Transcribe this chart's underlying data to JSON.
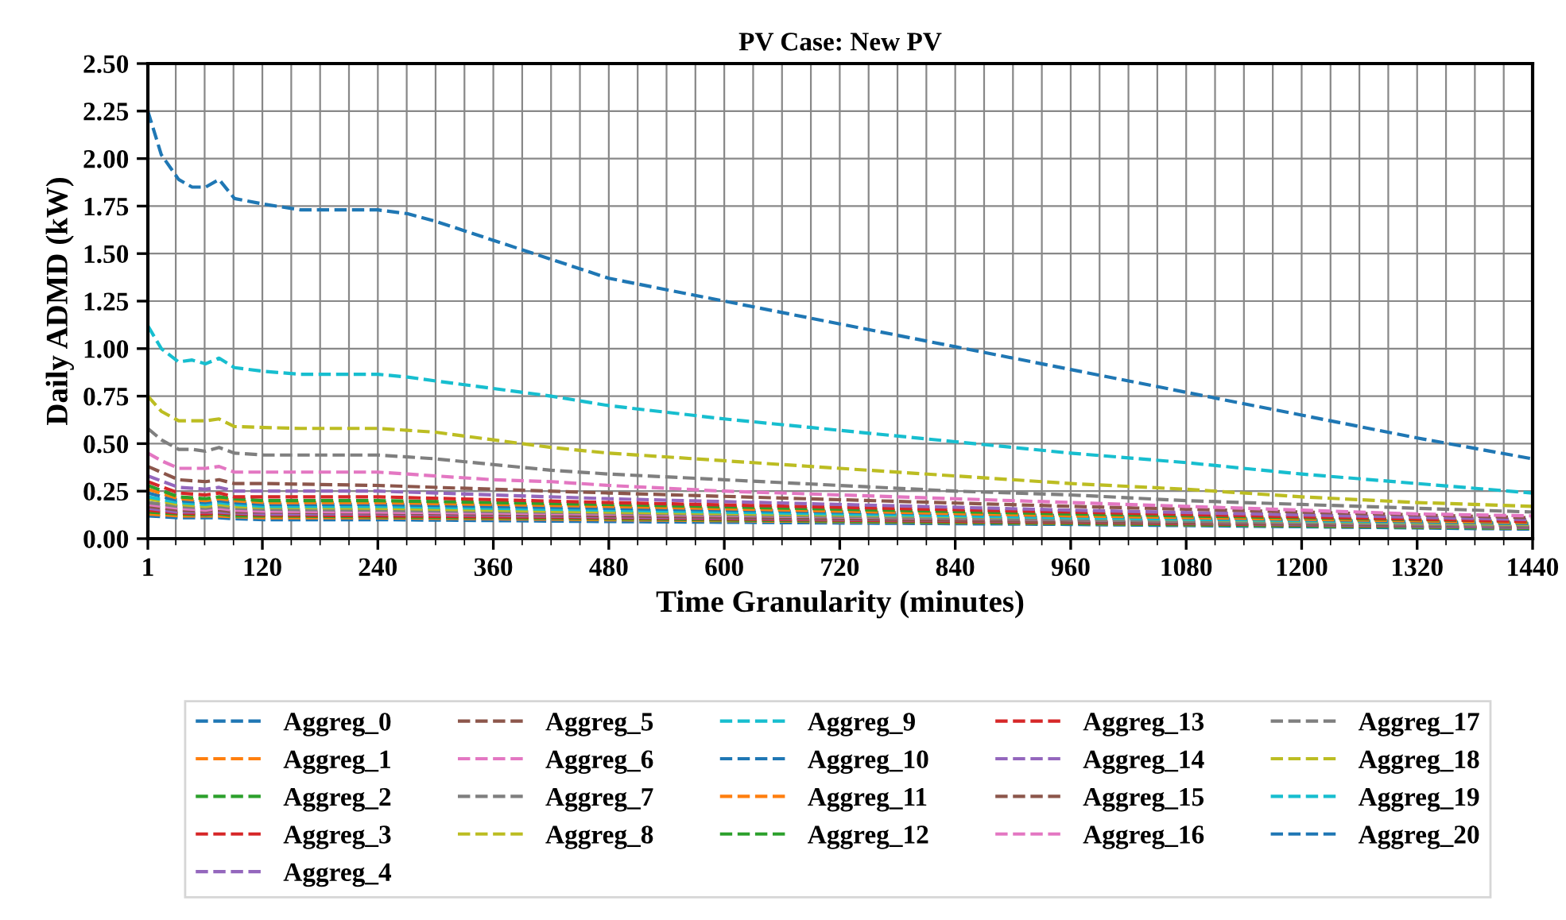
{
  "chart_data": {
    "type": "line",
    "title": "PV Case: New PV",
    "xlabel": "Time Granularity (minutes)",
    "ylabel": "Daily ADMD (kW)",
    "x": [
      1,
      15,
      33,
      47,
      61,
      75,
      91,
      122,
      160,
      240,
      271,
      300,
      360,
      420,
      480,
      600,
      720,
      840,
      960,
      1080,
      1200,
      1320,
      1440
    ],
    "xlim": [
      1,
      1440
    ],
    "xticks": [
      1,
      {
        "value": 30,
        "label": null
      },
      {
        "value": 60,
        "label": null
      },
      {
        "value": 90,
        "label": null
      },
      120,
      {
        "value": 150,
        "label": null
      },
      {
        "value": 180,
        "label": null
      },
      {
        "value": 210,
        "label": null
      },
      240,
      {
        "value": 270,
        "label": null
      },
      {
        "value": 300,
        "label": null
      },
      {
        "value": 330,
        "label": null
      },
      360,
      {
        "value": 390,
        "label": null
      },
      {
        "value": 420,
        "label": null
      },
      {
        "value": 450,
        "label": null
      },
      480,
      {
        "value": 510,
        "label": null
      },
      {
        "value": 540,
        "label": null
      },
      {
        "value": 570,
        "label": null
      },
      600,
      {
        "value": 630,
        "label": null
      },
      {
        "value": 660,
        "label": null
      },
      {
        "value": 690,
        "label": null
      },
      720,
      {
        "value": 750,
        "label": null
      },
      {
        "value": 780,
        "label": null
      },
      {
        "value": 810,
        "label": null
      },
      840,
      {
        "value": 870,
        "label": null
      },
      {
        "value": 900,
        "label": null
      },
      {
        "value": 930,
        "label": null
      },
      960,
      {
        "value": 990,
        "label": null
      },
      {
        "value": 1020,
        "label": null
      },
      {
        "value": 1050,
        "label": null
      },
      1080,
      {
        "value": 1110,
        "label": null
      },
      {
        "value": 1140,
        "label": null
      },
      {
        "value": 1170,
        "label": null
      },
      1200,
      {
        "value": 1230,
        "label": null
      },
      {
        "value": 1260,
        "label": null
      },
      {
        "value": 1290,
        "label": null
      },
      1320,
      {
        "value": 1350,
        "label": null
      },
      {
        "value": 1380,
        "label": null
      },
      {
        "value": 1410,
        "label": null
      },
      1440
    ],
    "ylim": [
      0,
      2.5
    ],
    "yticks": [
      {
        "value": 0,
        "label": "0.00"
      },
      {
        "value": 0.25,
        "label": "0.25"
      },
      {
        "value": 0.5,
        "label": "0.50"
      },
      {
        "value": 0.75,
        "label": "0.75"
      },
      {
        "value": 1,
        "label": "1.00"
      },
      {
        "value": 1.25,
        "label": "1.25"
      },
      {
        "value": 1.5,
        "label": "1.50"
      },
      {
        "value": 1.75,
        "label": "1.75"
      },
      {
        "value": 2,
        "label": "2.00"
      },
      {
        "value": 2.25,
        "label": "2.25"
      },
      {
        "value": 2.5,
        "label": "2.50"
      }
    ],
    "grid": true,
    "legend": "bottom",
    "line_style": "dashed",
    "series": [
      {
        "name": "Aggreg_0",
        "color": "#1f77b4",
        "x": [
          1,
          33,
          61,
          75,
          91,
          122,
          240,
          480,
          960,
          1440
        ],
        "values": [
          0.12,
          0.11,
          0.11,
          0.11,
          0.105,
          0.1,
          0.1,
          0.09,
          0.075,
          0.05
        ]
      },
      {
        "name": "Aggreg_1",
        "color": "#ff7f0e",
        "x": [
          1,
          33,
          61,
          75,
          91,
          122,
          240,
          480,
          960,
          1440
        ],
        "values": [
          0.13,
          0.12,
          0.12,
          0.12,
          0.115,
          0.11,
          0.11,
          0.1,
          0.08,
          0.055
        ]
      },
      {
        "name": "Aggreg_2",
        "color": "#2ca02c",
        "x": [
          1,
          33,
          61,
          75,
          91,
          122,
          240,
          480,
          960,
          1440
        ],
        "values": [
          0.14,
          0.13,
          0.125,
          0.13,
          0.12,
          0.12,
          0.115,
          0.105,
          0.08,
          0.055
        ]
      },
      {
        "name": "Aggreg_3",
        "color": "#d62728",
        "x": [
          1,
          33,
          61,
          75,
          91,
          122,
          240,
          480,
          960,
          1440
        ],
        "values": [
          0.15,
          0.135,
          0.13,
          0.135,
          0.13,
          0.125,
          0.12,
          0.11,
          0.085,
          0.06
        ]
      },
      {
        "name": "Aggreg_4",
        "color": "#9467bd",
        "x": [
          1,
          33,
          61,
          75,
          91,
          122,
          240,
          480,
          960,
          1440
        ],
        "values": [
          0.16,
          0.14,
          0.14,
          0.14,
          0.135,
          0.13,
          0.13,
          0.115,
          0.09,
          0.06
        ]
      },
      {
        "name": "Aggreg_5",
        "color": "#8c564b",
        "x": [
          1,
          33,
          61,
          75,
          91,
          122,
          240,
          480,
          960,
          1440
        ],
        "values": [
          0.17,
          0.15,
          0.145,
          0.15,
          0.14,
          0.14,
          0.135,
          0.12,
          0.09,
          0.065
        ]
      },
      {
        "name": "Aggreg_6",
        "color": "#e377c2",
        "x": [
          1,
          33,
          61,
          75,
          91,
          122,
          240,
          480,
          960,
          1440
        ],
        "values": [
          0.18,
          0.16,
          0.15,
          0.16,
          0.15,
          0.145,
          0.14,
          0.13,
          0.1,
          0.07
        ]
      },
      {
        "name": "Aggreg_7",
        "color": "#7f7f7f",
        "x": [
          1,
          33,
          61,
          75,
          91,
          122,
          240,
          480,
          960,
          1440
        ],
        "values": [
          0.19,
          0.17,
          0.16,
          0.17,
          0.16,
          0.155,
          0.15,
          0.135,
          0.1,
          0.07
        ]
      },
      {
        "name": "Aggreg_8",
        "color": "#bcbd22",
        "x": [
          1,
          33,
          61,
          75,
          91,
          122,
          240,
          480,
          960,
          1440
        ],
        "values": [
          0.21,
          0.18,
          0.17,
          0.18,
          0.17,
          0.165,
          0.16,
          0.14,
          0.11,
          0.075
        ]
      },
      {
        "name": "Aggreg_9",
        "color": "#17becf",
        "x": [
          1,
          33,
          61,
          75,
          91,
          122,
          240,
          480,
          960,
          1440
        ],
        "values": [
          0.22,
          0.19,
          0.18,
          0.19,
          0.18,
          0.17,
          0.17,
          0.15,
          0.11,
          0.08
        ]
      },
      {
        "name": "Aggreg_10",
        "color": "#1f77b4",
        "x": [
          1,
          33,
          61,
          75,
          91,
          122,
          240,
          480,
          960,
          1440
        ],
        "values": [
          0.24,
          0.2,
          0.19,
          0.2,
          0.19,
          0.18,
          0.18,
          0.16,
          0.12,
          0.08
        ]
      },
      {
        "name": "Aggreg_11",
        "color": "#ff7f0e",
        "x": [
          1,
          33,
          61,
          75,
          91,
          122,
          240,
          480,
          960,
          1440
        ],
        "values": [
          0.26,
          0.21,
          0.2,
          0.21,
          0.2,
          0.19,
          0.19,
          0.17,
          0.12,
          0.085
        ]
      },
      {
        "name": "Aggreg_12",
        "color": "#2ca02c",
        "x": [
          1,
          33,
          61,
          75,
          91,
          122,
          240,
          480,
          960,
          1440
        ],
        "values": [
          0.28,
          0.22,
          0.21,
          0.22,
          0.21,
          0.2,
          0.2,
          0.18,
          0.13,
          0.09
        ]
      },
      {
        "name": "Aggreg_13",
        "color": "#d62728",
        "x": [
          1,
          33,
          61,
          75,
          91,
          122,
          240,
          480,
          960,
          1440
        ],
        "values": [
          0.3,
          0.24,
          0.23,
          0.24,
          0.22,
          0.22,
          0.22,
          0.19,
          0.14,
          0.09
        ]
      },
      {
        "name": "Aggreg_14",
        "color": "#9467bd",
        "x": [
          1,
          33,
          61,
          75,
          91,
          122,
          240,
          480,
          960,
          1440
        ],
        "values": [
          0.33,
          0.27,
          0.26,
          0.27,
          0.25,
          0.25,
          0.25,
          0.21,
          0.15,
          0.1
        ]
      },
      {
        "name": "Aggreg_15",
        "color": "#8c564b",
        "x": [
          1,
          33,
          61,
          75,
          91,
          122,
          240,
          480,
          960,
          1440
        ],
        "values": [
          0.38,
          0.31,
          0.3,
          0.31,
          0.29,
          0.29,
          0.28,
          0.24,
          0.17,
          0.11
        ]
      },
      {
        "name": "Aggreg_16",
        "color": "#e377c2",
        "values": [
          0.45,
          0.41,
          0.37,
          0.37,
          0.37,
          0.38,
          0.35,
          0.35,
          0.35,
          0.35,
          0.34,
          0.33,
          0.31,
          0.3,
          0.28,
          0.25,
          0.23,
          0.21,
          0.19,
          0.17,
          0.15,
          0.13,
          0.12
        ]
      },
      {
        "name": "Aggreg_17",
        "color": "#7f7f7f",
        "values": [
          0.58,
          0.52,
          0.47,
          0.47,
          0.46,
          0.48,
          0.45,
          0.44,
          0.44,
          0.44,
          0.43,
          0.42,
          0.39,
          0.36,
          0.34,
          0.31,
          0.28,
          0.25,
          0.23,
          0.2,
          0.18,
          0.16,
          0.14
        ]
      },
      {
        "name": "Aggreg_18",
        "color": "#bcbd22",
        "values": [
          0.75,
          0.67,
          0.62,
          0.62,
          0.62,
          0.63,
          0.59,
          0.585,
          0.58,
          0.58,
          0.57,
          0.56,
          0.52,
          0.48,
          0.45,
          0.41,
          0.37,
          0.33,
          0.29,
          0.26,
          0.22,
          0.19,
          0.17
        ]
      },
      {
        "name": "Aggreg_19",
        "color": "#17becf",
        "values": [
          1.12,
          1.0,
          0.93,
          0.94,
          0.92,
          0.95,
          0.9,
          0.88,
          0.865,
          0.865,
          0.85,
          0.83,
          0.79,
          0.75,
          0.7,
          0.63,
          0.57,
          0.51,
          0.45,
          0.4,
          0.34,
          0.29,
          0.24
        ]
      },
      {
        "name": "Aggreg_20",
        "color": "#1f77b4",
        "values": [
          2.25,
          2.02,
          1.89,
          1.85,
          1.85,
          1.89,
          1.79,
          1.76,
          1.73,
          1.73,
          1.71,
          1.67,
          1.57,
          1.47,
          1.37,
          1.25,
          1.13,
          1.01,
          0.89,
          0.77,
          0.65,
          0.53,
          0.42
        ]
      }
    ]
  }
}
